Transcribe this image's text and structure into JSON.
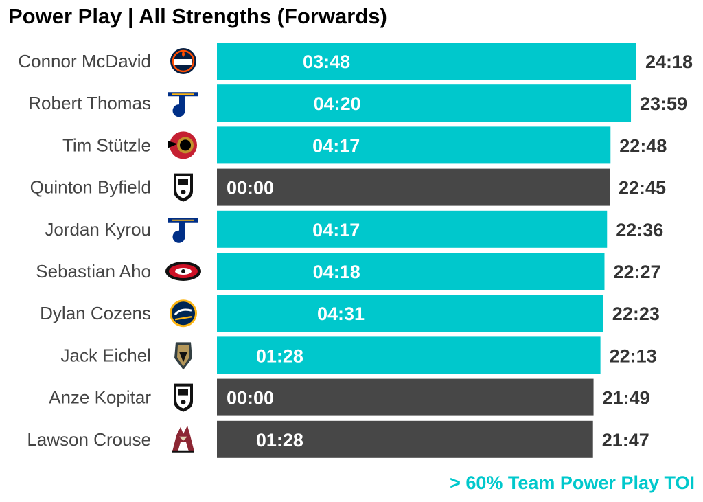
{
  "chart_data": {
    "type": "bar",
    "orientation": "horizontal",
    "title": "Power Play | All Strengths (Forwards)",
    "annotation": "> 60% Team Power Play TOI",
    "colors": {
      "highlight": "#00c8cc",
      "default": "#474747",
      "inner_label": "#ffffff",
      "total_label": "#333333",
      "name_label": "#444444"
    },
    "categories": [
      "Connor McDavid",
      "Robert Thomas",
      "Tim Stützle",
      "Quinton Byfield",
      "Jordan Kyrou",
      "Sebastian Aho",
      "Dylan Cozens",
      "Jack Eichel",
      "Anze Kopitar",
      "Lawson Crouse"
    ],
    "teams": [
      "oilers",
      "blues",
      "senators",
      "kings",
      "blues",
      "hurricanes",
      "sabres",
      "golden-knights",
      "kings",
      "coyotes"
    ],
    "series": [
      {
        "values": [
          "24:18",
          "23:59",
          "22:48",
          "22:45",
          "22:36",
          "22:27",
          "22:23",
          "22:13",
          "21:49",
          "21:47"
        ]
      },
      {
        "values": [
          "03:48",
          "04:20",
          "04:17",
          "00:00",
          "04:17",
          "04:18",
          "04:31",
          "01:28",
          "00:00",
          "01:28"
        ]
      }
    ],
    "highlighted": [
      true,
      true,
      true,
      false,
      true,
      true,
      true,
      true,
      false,
      false
    ]
  }
}
